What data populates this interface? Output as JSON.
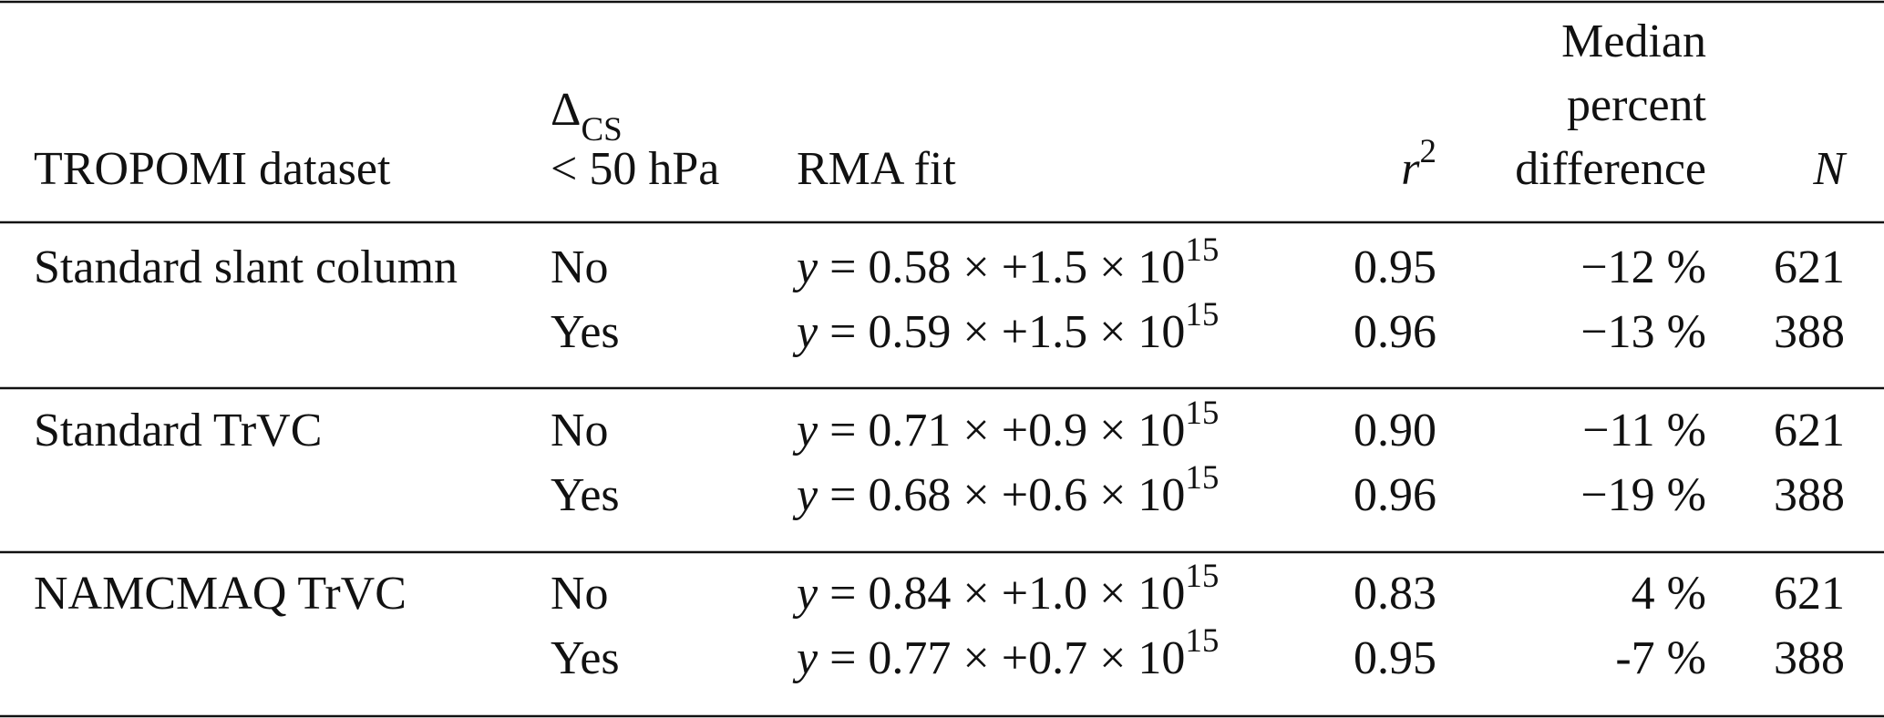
{
  "table": {
    "header": {
      "dataset": "TROPOMI dataset",
      "delta": {
        "symbol": "Δ",
        "sub": "CS",
        "cond": "< 50 hPa"
      },
      "fit": "RMA fit",
      "r2": {
        "base": "r",
        "sup": "2"
      },
      "median": [
        "Median",
        "percent",
        "difference"
      ],
      "n": "N"
    },
    "groups": [
      {
        "dataset": "Standard slant column",
        "rows": [
          {
            "cs": "No",
            "fit": {
              "var": "y",
              "expr": " = 0.58 × +1.5 × 10",
              "exp": "15"
            },
            "r2": "0.95",
            "median": "−12 %",
            "n": "621"
          },
          {
            "cs": "Yes",
            "fit": {
              "var": "y",
              "expr": " = 0.59 × +1.5 × 10",
              "exp": "15"
            },
            "r2": "0.96",
            "median": "−13 %",
            "n": "388"
          }
        ]
      },
      {
        "dataset": "Standard TrVC",
        "rows": [
          {
            "cs": "No",
            "fit": {
              "var": "y",
              "expr": " = 0.71 × +0.9 × 10",
              "exp": "15"
            },
            "r2": "0.90",
            "median": "−11 %",
            "n": "621"
          },
          {
            "cs": "Yes",
            "fit": {
              "var": "y",
              "expr": " = 0.68 × +0.6 × 10",
              "exp": "15"
            },
            "r2": "0.96",
            "median": "−19 %",
            "n": "388"
          }
        ]
      },
      {
        "dataset": "NAMCMAQ TrVC",
        "rows": [
          {
            "cs": "No",
            "fit": {
              "var": "y",
              "expr": " = 0.84 × +1.0 × 10",
              "exp": "15"
            },
            "r2": "0.83",
            "median": "4 %",
            "n": "621"
          },
          {
            "cs": "Yes",
            "fit": {
              "var": "y",
              "expr": " = 0.77 × +0.7 × 10",
              "exp": "15"
            },
            "r2": "0.95",
            "median": "-7 %",
            "n": "388"
          }
        ]
      }
    ]
  }
}
